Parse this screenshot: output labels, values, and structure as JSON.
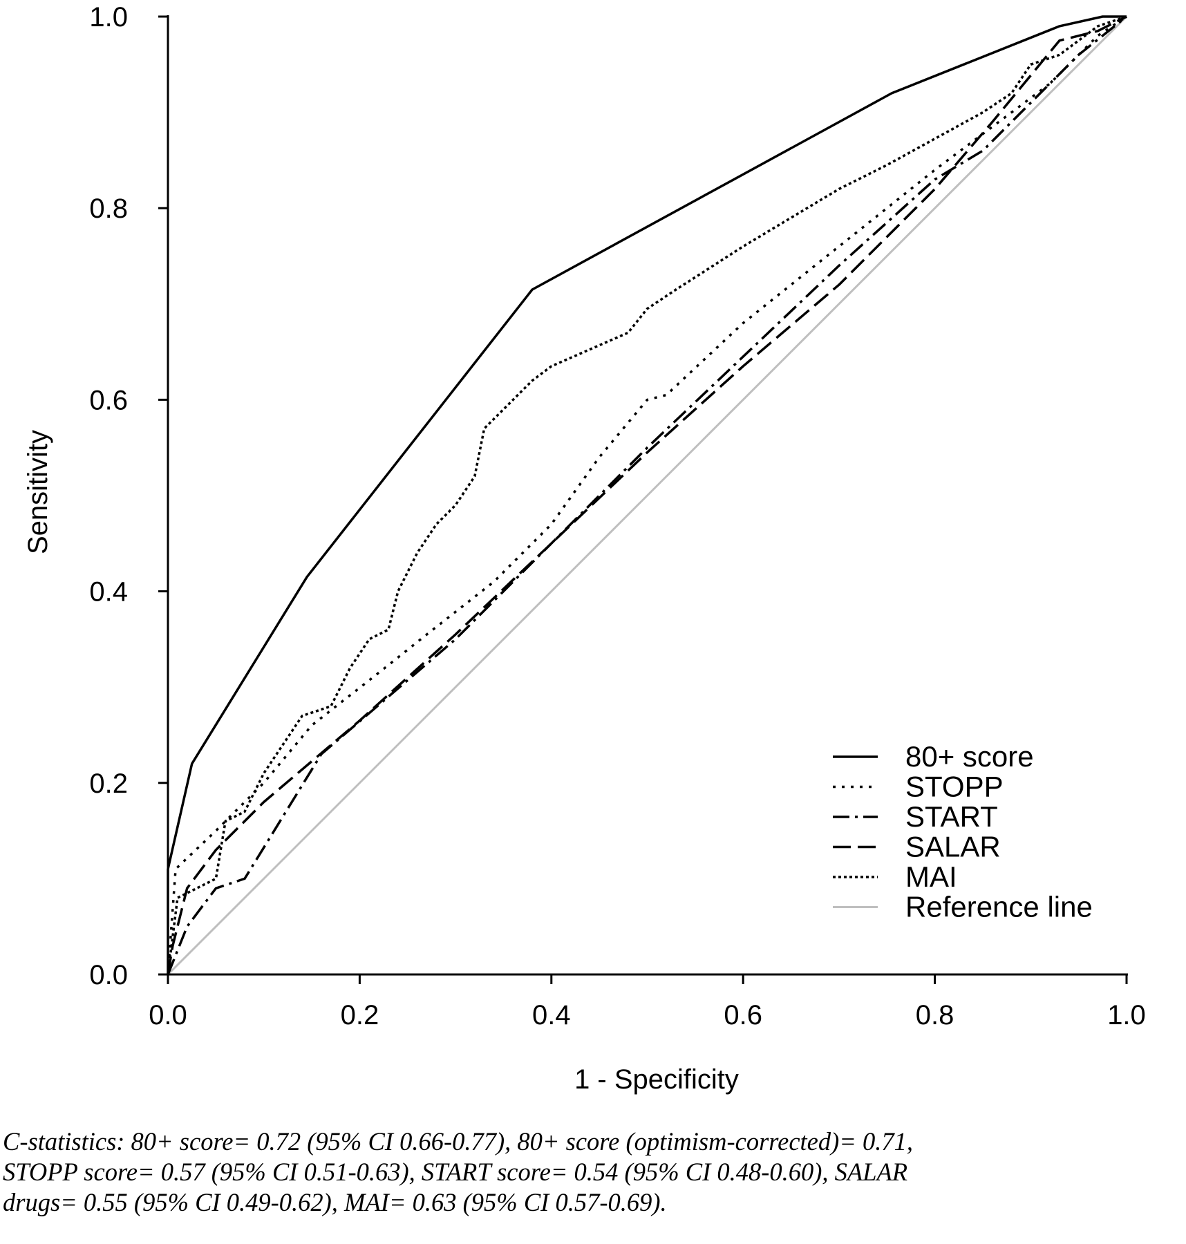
{
  "chart_data": {
    "type": "line",
    "xlabel": "1 - Specificity",
    "ylabel": "Sensitivity",
    "xlim": [
      0,
      1
    ],
    "ylim": [
      0,
      1
    ],
    "x_ticks": [
      "0.0",
      "0.2",
      "0.4",
      "0.6",
      "0.8",
      "1.0"
    ],
    "y_ticks": [
      "0.0",
      "0.2",
      "0.4",
      "0.6",
      "0.8",
      "1.0"
    ],
    "grid": false,
    "legend_position": "bottom-right",
    "series": [
      {
        "name": "80+ score",
        "style": "solid",
        "color": "#000000",
        "x": [
          0,
          0,
          0.025,
          0.145,
          0.38,
          0.755,
          0.93,
          0.975,
          1
        ],
        "y": [
          0,
          0.11,
          0.22,
          0.415,
          0.715,
          0.92,
          0.99,
          1,
          1
        ]
      },
      {
        "name": "STOPP",
        "style": "dotted",
        "color": "#000000",
        "x": [
          0,
          0.008,
          0.05,
          0.1,
          0.15,
          0.22,
          0.27,
          0.34,
          0.4,
          0.45,
          0.5,
          0.52,
          0.6,
          0.7,
          0.8,
          0.88,
          0.92,
          0.97,
          1
        ],
        "y": [
          0,
          0.11,
          0.15,
          0.2,
          0.26,
          0.315,
          0.355,
          0.41,
          0.47,
          0.54,
          0.6,
          0.605,
          0.68,
          0.76,
          0.84,
          0.9,
          0.93,
          0.98,
          1
        ]
      },
      {
        "name": "START",
        "style": "dash-dot",
        "color": "#000000",
        "x": [
          0,
          0.02,
          0.05,
          0.08,
          0.16,
          0.3,
          0.5,
          0.7,
          0.8,
          0.85,
          0.9,
          0.95,
          1
        ],
        "y": [
          0,
          0.05,
          0.09,
          0.1,
          0.23,
          0.35,
          0.55,
          0.74,
          0.83,
          0.86,
          0.91,
          0.96,
          1
        ]
      },
      {
        "name": "SALAR",
        "style": "dashed",
        "color": "#000000",
        "x": [
          0,
          0.005,
          0.02,
          0.05,
          0.1,
          0.2,
          0.3,
          0.4,
          0.5,
          0.6,
          0.7,
          0.8,
          0.86,
          0.93,
          0.97,
          1
        ],
        "y": [
          0,
          0.03,
          0.09,
          0.13,
          0.18,
          0.265,
          0.355,
          0.45,
          0.545,
          0.635,
          0.72,
          0.82,
          0.89,
          0.975,
          0.985,
          1
        ]
      },
      {
        "name": "MAI",
        "style": "dense-dotted",
        "color": "#000000",
        "x": [
          0,
          0.01,
          0.03,
          0.05,
          0.06,
          0.08,
          0.1,
          0.12,
          0.14,
          0.17,
          0.19,
          0.21,
          0.23,
          0.24,
          0.26,
          0.28,
          0.3,
          0.32,
          0.33,
          0.35,
          0.38,
          0.4,
          0.48,
          0.5,
          0.53,
          0.6,
          0.7,
          0.75,
          0.85,
          0.88,
          0.9,
          0.93,
          0.97,
          1
        ],
        "y": [
          0,
          0.08,
          0.09,
          0.1,
          0.16,
          0.17,
          0.21,
          0.24,
          0.27,
          0.28,
          0.32,
          0.35,
          0.36,
          0.4,
          0.44,
          0.47,
          0.49,
          0.52,
          0.57,
          0.59,
          0.62,
          0.635,
          0.67,
          0.695,
          0.715,
          0.76,
          0.82,
          0.845,
          0.9,
          0.92,
          0.95,
          0.96,
          0.99,
          1
        ]
      },
      {
        "name": "Reference line",
        "style": "solid",
        "color": "#bfbfbf",
        "x": [
          0,
          1
        ],
        "y": [
          0,
          1
        ]
      }
    ]
  },
  "caption": {
    "line1": "C-statistics: 80+ score= 0.72 (95% CI 0.66-0.77), 80+ score (optimism-corrected)= 0.71,",
    "line2": "STOPP score= 0.57 (95% CI 0.51-0.63), START score= 0.54 (95% CI 0.48-0.60), SALAR",
    "line3": "drugs= 0.55 (95% CI 0.49-0.62), MAI= 0.63 (95% CI 0.57-0.69)."
  }
}
